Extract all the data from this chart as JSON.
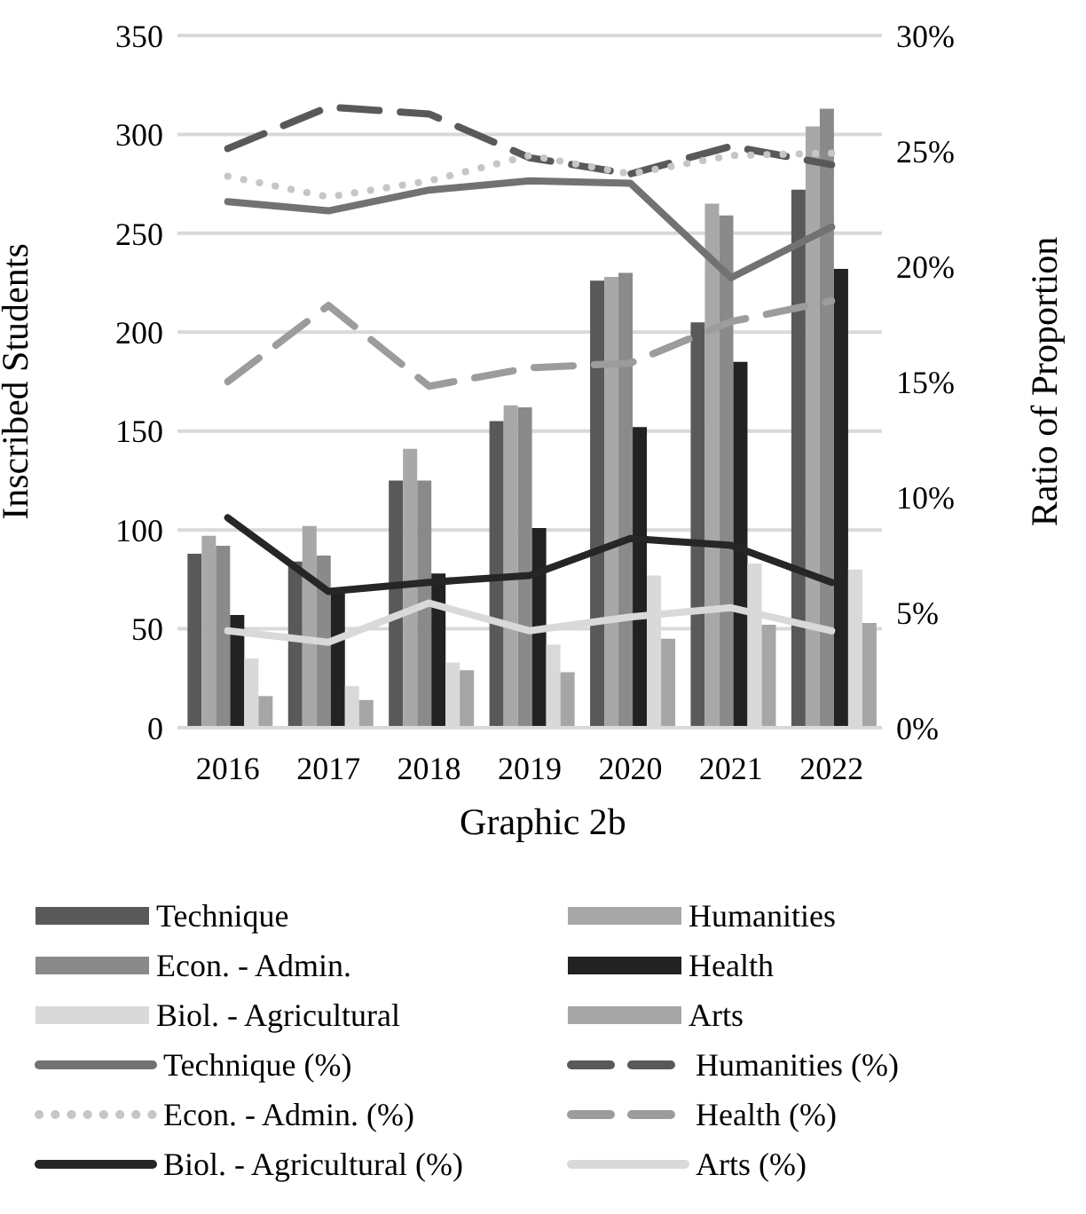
{
  "chart_data": {
    "type": "bar",
    "title": "Graphic 2b",
    "ylabel": "Inscribed Students",
    "y2label": "Ratio of Proportion",
    "categories": [
      "2016",
      "2017",
      "2018",
      "2019",
      "2020",
      "2021",
      "2022"
    ],
    "ylim": [
      0,
      350
    ],
    "yticks": [
      0,
      50,
      100,
      150,
      200,
      250,
      300,
      350
    ],
    "y2lim": [
      0,
      30
    ],
    "y2ticks": [
      {
        "value": 0,
        "label": "0%"
      },
      {
        "value": 5,
        "label": "5%"
      },
      {
        "value": 10,
        "label": "10%"
      },
      {
        "value": 15,
        "label": "15%"
      },
      {
        "value": 20,
        "label": "20%"
      },
      {
        "value": 25,
        "label": "25%"
      },
      {
        "value": 30,
        "label": "30%"
      }
    ],
    "grid": "y",
    "legend": "bottom",
    "marker": "none",
    "series": [
      {
        "name": "Technique",
        "color": "#595959",
        "values": [
          88,
          84,
          125,
          155,
          226,
          205,
          272
        ]
      },
      {
        "name": "Humanities",
        "color": "#a8a8a8",
        "values": [
          97,
          102,
          141,
          163,
          228,
          265,
          304
        ]
      },
      {
        "name": "Econ. - Admin.",
        "color": "#8a8a8a",
        "values": [
          92,
          87,
          125,
          162,
          230,
          259,
          313
        ]
      },
      {
        "name": "Health",
        "color": "#222222",
        "values": [
          57,
          68,
          78,
          101,
          152,
          185,
          232
        ]
      },
      {
        "name": "Biol. - Agricultural",
        "color": "#d9d9d9",
        "values": [
          35,
          21,
          33,
          42,
          77,
          83,
          80
        ]
      },
      {
        "name": "Arts",
        "color": "#a6a6a6",
        "values": [
          16,
          14,
          29,
          28,
          45,
          52,
          53
        ]
      },
      {
        "name": "Technique (%)",
        "type": "line",
        "axis": "y2",
        "line_style": "solid",
        "color": "#727272",
        "values": [
          22.8,
          22.4,
          23.3,
          23.7,
          23.6,
          19.5,
          21.7
        ]
      },
      {
        "name": "Humanities (%)",
        "type": "line",
        "axis": "y2",
        "line_style": "dashed",
        "color": "#595959",
        "values": [
          25.1,
          26.9,
          26.6,
          24.7,
          24.0,
          25.2,
          24.4
        ]
      },
      {
        "name": "Econ. - Admin. (%)",
        "type": "line",
        "axis": "y2",
        "line_style": "dotted",
        "color": "#c6c6c6",
        "values": [
          23.9,
          23.0,
          23.7,
          24.8,
          24.0,
          24.8,
          24.9
        ]
      },
      {
        "name": "Health (%)",
        "type": "line",
        "axis": "y2",
        "line_style": "dashed",
        "color": "#9c9c9c",
        "values": [
          15.0,
          18.3,
          14.8,
          15.6,
          15.8,
          17.6,
          18.5
        ]
      },
      {
        "name": "Biol. - Agricultural (%)",
        "type": "line",
        "axis": "y2",
        "line_style": "solid",
        "color": "#262626",
        "values": [
          9.1,
          5.9,
          6.3,
          6.6,
          8.2,
          7.9,
          6.3
        ]
      },
      {
        "name": "Arts (%)",
        "type": "line",
        "axis": "y2",
        "line_style": "solid",
        "color": "#d9d9d9",
        "values": [
          4.2,
          3.7,
          5.4,
          4.2,
          4.8,
          5.2,
          4.2
        ]
      }
    ]
  }
}
